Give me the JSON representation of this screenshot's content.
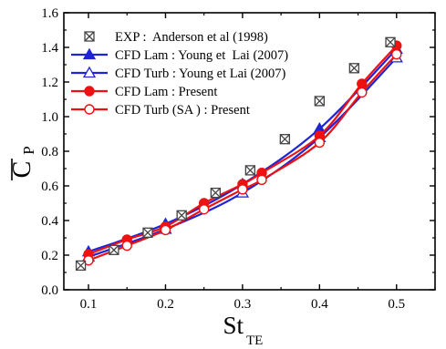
{
  "chart_data": {
    "type": "line",
    "xlabel_main": "St",
    "xlabel_sub": "TE",
    "ylabel_main": "C",
    "ylabel_sub": "P",
    "xlim": [
      0.068,
      0.55
    ],
    "ylim": [
      0.0,
      1.6
    ],
    "x_ticks": [
      0.1,
      0.2,
      0.3,
      0.4,
      0.5
    ],
    "x_tick_labels": [
      "0.1",
      "0.2",
      "0.3",
      "0.4",
      "0.5"
    ],
    "y_ticks": [
      0.0,
      0.2,
      0.4,
      0.6,
      0.8,
      1.0,
      1.2,
      1.4,
      1.6
    ],
    "y_tick_labels": [
      "0.0",
      "0.2",
      "0.4",
      "0.6",
      "0.8",
      "1.0",
      "1.2",
      "1.4",
      "1.6"
    ],
    "grid": false,
    "legend_position": "top-left",
    "series": [
      {
        "name": "EXP :  Anderson et al (1998)",
        "marker": "boxed-x",
        "line": false,
        "color": "#333333",
        "x": [
          0.09,
          0.133,
          0.177,
          0.221,
          0.265,
          0.31,
          0.355,
          0.4,
          0.445,
          0.492
        ],
        "y": [
          0.14,
          0.23,
          0.33,
          0.43,
          0.56,
          0.69,
          0.87,
          1.09,
          1.28,
          1.43
        ]
      },
      {
        "name": "CFD Lam : Young et  Lai (2007)",
        "marker": "triangle-filled",
        "line": true,
        "color": "#1f24d6",
        "x": [
          0.1,
          0.2,
          0.3,
          0.4,
          0.5
        ],
        "y": [
          0.22,
          0.38,
          0.61,
          0.93,
          1.39
        ]
      },
      {
        "name": "CFD Turb : Young et Lai (2007)",
        "marker": "triangle-open",
        "line": true,
        "color": "#1f24d6",
        "x": [
          0.1,
          0.2,
          0.3,
          0.4,
          0.5
        ],
        "y": [
          0.19,
          0.35,
          0.56,
          0.88,
          1.34
        ]
      },
      {
        "name": "CFD Lam : Present",
        "marker": "circle-filled",
        "line": true,
        "color": "#ee1111",
        "x": [
          0.1,
          0.15,
          0.2,
          0.25,
          0.3,
          0.325,
          0.4,
          0.455,
          0.5
        ],
        "y": [
          0.205,
          0.29,
          0.365,
          0.5,
          0.61,
          0.675,
          0.89,
          1.19,
          1.41
        ]
      },
      {
        "name": "CFD Turb (SA ) : Present",
        "marker": "circle-open",
        "line": true,
        "color": "#ee1111",
        "x": [
          0.1,
          0.15,
          0.2,
          0.25,
          0.3,
          0.325,
          0.4,
          0.455,
          0.5
        ],
        "y": [
          0.17,
          0.255,
          0.345,
          0.465,
          0.58,
          0.635,
          0.85,
          1.14,
          1.36
        ]
      }
    ]
  }
}
